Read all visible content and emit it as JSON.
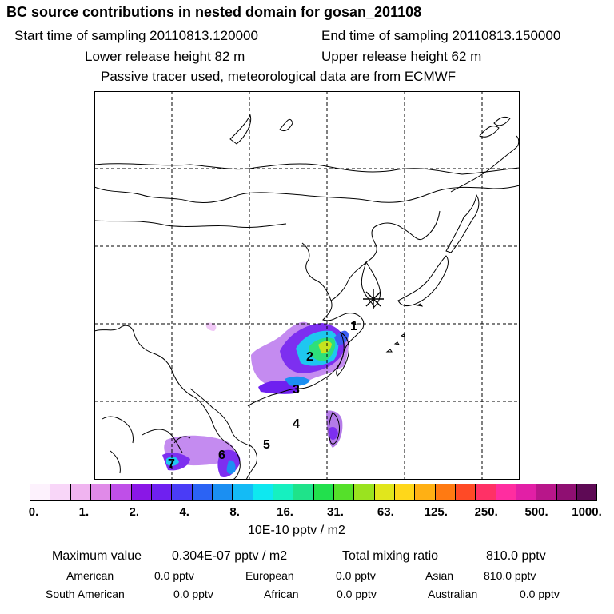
{
  "header": {
    "title": "BC  source contributions in nested domain for gosan_201108",
    "start_time": "Start time of sampling 20110813.120000",
    "end_time": "End time of sampling 20110813.150000",
    "lower_release": "Lower release height   82 m",
    "upper_release": "Upper release height   62 m",
    "note": "Passive tracer used, meteorological data are from ECMWF"
  },
  "map": {
    "region_labels": [
      "1",
      "2",
      "3",
      "4",
      "5",
      "6",
      "7"
    ],
    "receptor_marker": "star-marker"
  },
  "colorbar": {
    "colors": [
      "#fdf2fd",
      "#f8d6f8",
      "#f0b4f0",
      "#e08ae8",
      "#bf4fe8",
      "#8a17e6",
      "#6f20f0",
      "#4a3cf6",
      "#2b63f4",
      "#1b8ff2",
      "#14bbf5",
      "#0ee8f0",
      "#16f0c0",
      "#1fe38a",
      "#22e04d",
      "#55e02a",
      "#9ae31f",
      "#e1e61c",
      "#ffd71a",
      "#ffb014",
      "#ff7a12",
      "#ff4a26",
      "#ff3166",
      "#ff2da0",
      "#e21fa6",
      "#b8168a",
      "#8f0f72",
      "#5e0a55"
    ],
    "ticks": [
      "0.",
      "1.",
      "2.",
      "4.",
      "8.",
      "16.",
      "31.",
      "63.",
      "125.",
      "250.",
      "500.",
      "1000."
    ],
    "unit": "10E-10 pptv / m2"
  },
  "stats": {
    "max_label": "Maximum value",
    "max_value": "0.304E-07 pptv / m2",
    "total_label": "Total mixing ratio",
    "total_value": "810.0 pptv",
    "sources": [
      {
        "name": "American",
        "value": "0.0 pptv"
      },
      {
        "name": "European",
        "value": "0.0 pptv"
      },
      {
        "name": "Asian",
        "value": "810.0 pptv"
      },
      {
        "name": "South American",
        "value": "0.0 pptv"
      },
      {
        "name": "African",
        "value": "0.0 pptv"
      },
      {
        "name": "Australian",
        "value": "0.0 pptv"
      }
    ]
  }
}
